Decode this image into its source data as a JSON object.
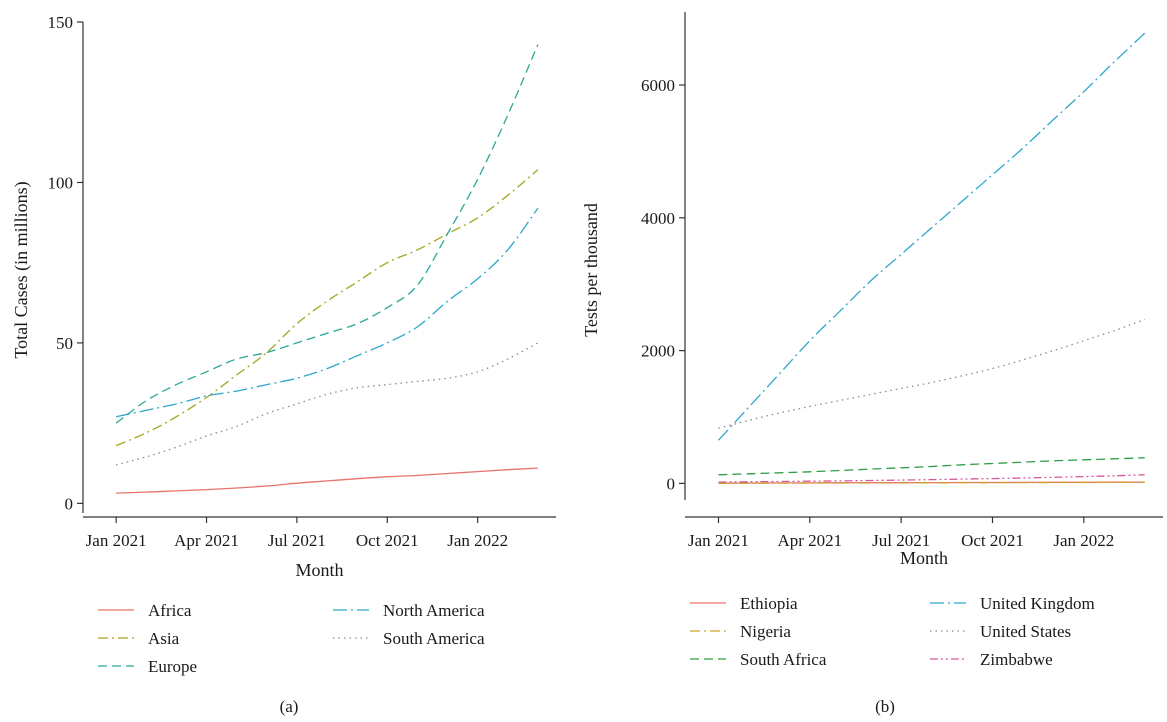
{
  "chart_data": [
    {
      "type": "line",
      "panel_label": "(a)",
      "title": "",
      "xlabel": "Month",
      "ylabel": "Total Cases (in millions)",
      "x": [
        "2021-01",
        "2021-02",
        "2021-03",
        "2021-04",
        "2021-05",
        "2021-06",
        "2021-07",
        "2021-08",
        "2021-09",
        "2021-10",
        "2021-11",
        "2021-12",
        "2022-01",
        "2022-02",
        "2022-03"
      ],
      "xticks": [
        "Jan 2021",
        "Apr 2021",
        "Jul 2021",
        "Oct 2021",
        "Jan 2022"
      ],
      "yticks": [
        0,
        50,
        100,
        150
      ],
      "ylim": [
        -3,
        150
      ],
      "legend_position": "bottom",
      "series": [
        {
          "name": "Africa",
          "color": "#e8736b",
          "dash": "solid",
          "values": [
            3.2,
            3.5,
            3.9,
            4.3,
            4.8,
            5.4,
            6.3,
            7.0,
            7.7,
            8.3,
            8.7,
            9.3,
            9.9,
            10.5,
            11.0
          ]
        },
        {
          "name": "Asia",
          "color": "#a3a51b",
          "dash": "dashdot",
          "values": [
            18,
            22,
            27,
            33,
            40,
            47,
            56,
            63,
            69,
            75,
            79,
            84,
            89,
            96,
            104
          ]
        },
        {
          "name": "Europe",
          "color": "#2aa898",
          "dash": "dashed",
          "values": [
            25,
            32,
            37,
            41,
            45,
            47,
            50,
            53,
            56,
            61,
            68,
            84,
            101,
            121,
            143
          ]
        },
        {
          "name": "North America",
          "color": "#2ea7cc",
          "dash": "dashdotlong",
          "values": [
            27,
            29,
            31,
            33.5,
            35,
            37,
            39,
            42,
            46,
            50,
            55,
            63,
            70,
            79,
            92
          ]
        },
        {
          "name": "South America",
          "color": "#8b8b8b",
          "dash": "dotted",
          "values": [
            12,
            14.5,
            17.5,
            21,
            24,
            28,
            31,
            34,
            36,
            37,
            38,
            39,
            41,
            45,
            50
          ]
        }
      ]
    },
    {
      "type": "line",
      "panel_label": "(b)",
      "title": "",
      "xlabel": "Month",
      "ylabel": "Tests per thousand",
      "x": [
        "2021-01",
        "2021-02",
        "2021-03",
        "2021-04",
        "2021-05",
        "2021-06",
        "2021-07",
        "2021-08",
        "2021-09",
        "2021-10",
        "2021-11",
        "2021-12",
        "2022-01",
        "2022-02",
        "2022-03"
      ],
      "xticks": [
        "Jan 2021",
        "Apr 2021",
        "Jul 2021",
        "Oct 2021",
        "Jan 2022"
      ],
      "yticks": [
        0,
        2000,
        4000,
        6000
      ],
      "ylim": [
        -250,
        7100
      ],
      "legend_position": "bottom",
      "series": [
        {
          "name": "Ethiopia",
          "color": "#e8736b",
          "dash": "solid",
          "values": [
            5,
            6,
            7,
            8,
            9,
            10,
            11,
            12,
            13,
            14,
            15,
            16,
            17,
            18,
            19
          ]
        },
        {
          "name": "Nigeria",
          "color": "#c9a227",
          "dash": "dashdot",
          "values": [
            2,
            3,
            4,
            5,
            6,
            7,
            8,
            9,
            10,
            11,
            12,
            13,
            14,
            15,
            16
          ]
        },
        {
          "name": "South Africa",
          "color": "#2e9e46",
          "dash": "dashed",
          "values": [
            130,
            145,
            160,
            175,
            195,
            215,
            235,
            255,
            280,
            300,
            320,
            340,
            355,
            370,
            385
          ]
        },
        {
          "name": "United Kingdom",
          "color": "#2ea7cc",
          "dash": "dashdotlong",
          "values": [
            650,
            1150,
            1650,
            2150,
            2600,
            3050,
            3450,
            3850,
            4250,
            4650,
            5050,
            5480,
            5900,
            6350,
            6780
          ]
        },
        {
          "name": "United States",
          "color": "#8b8b8b",
          "dash": "dotted",
          "values": [
            830,
            950,
            1060,
            1160,
            1250,
            1340,
            1430,
            1520,
            1620,
            1730,
            1860,
            2000,
            2150,
            2300,
            2470
          ]
        },
        {
          "name": "Zimbabwe",
          "color": "#d6589a",
          "dash": "dashdotdot",
          "values": [
            20,
            24,
            28,
            33,
            38,
            44,
            50,
            57,
            65,
            73,
            82,
            92,
            103,
            115,
            130
          ]
        }
      ]
    }
  ]
}
